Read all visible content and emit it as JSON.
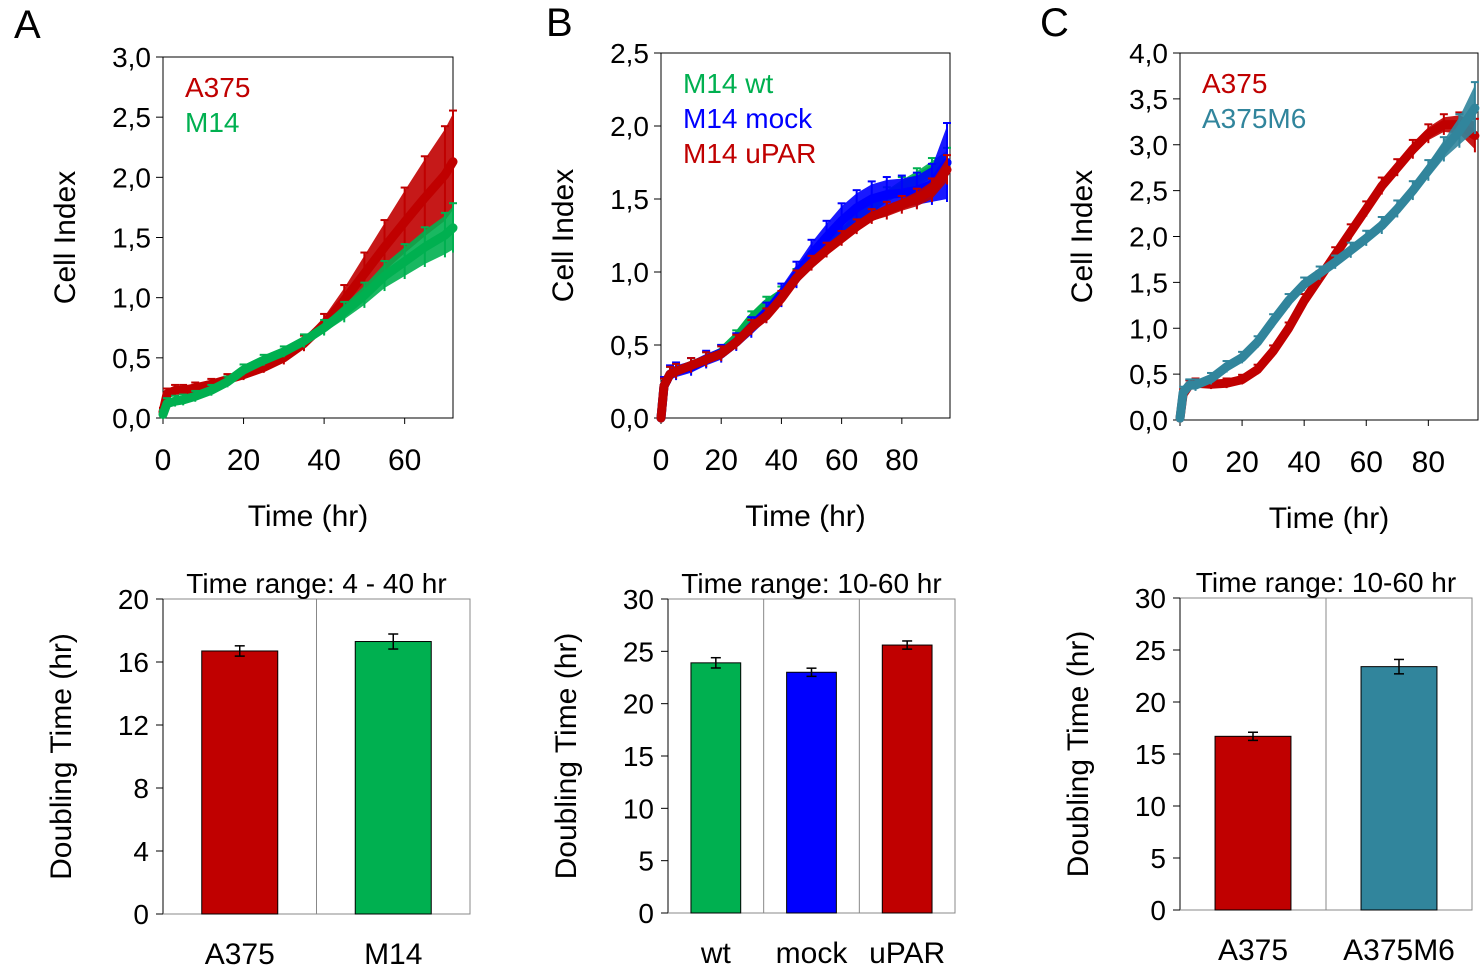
{
  "panel_labels": [
    "A",
    "B",
    "C"
  ],
  "chart_data": [
    {
      "type": "line",
      "panel": "A",
      "xlabel": "Time (hr)",
      "ylabel": "Cell Index",
      "xlim": [
        0,
        72
      ],
      "ylim": [
        0,
        3.0
      ],
      "xticks": [
        "0",
        "20",
        "40",
        "60"
      ],
      "yticks": [
        "0,0",
        "0,5",
        "1,0",
        "1,5",
        "2,0",
        "2,5",
        "3,0"
      ],
      "legend": "top-left",
      "grid": false,
      "series": [
        {
          "name": "A375",
          "color": "#C00000",
          "x": [
            0,
            1,
            3,
            5,
            8,
            12,
            16,
            20,
            25,
            30,
            35,
            40,
            45,
            50,
            55,
            60,
            65,
            70,
            72
          ],
          "y": [
            0.05,
            0.2,
            0.23,
            0.23,
            0.25,
            0.28,
            0.32,
            0.36,
            0.42,
            0.5,
            0.62,
            0.78,
            0.98,
            1.2,
            1.42,
            1.63,
            1.83,
            2.02,
            2.13
          ],
          "err": [
            0.01,
            0.02,
            0.02,
            0.02,
            0.02,
            0.02,
            0.02,
            0.02,
            0.02,
            0.03,
            0.04,
            0.06,
            0.1,
            0.15,
            0.2,
            0.26,
            0.32,
            0.38,
            0.4
          ]
        },
        {
          "name": "M14",
          "color": "#00B050",
          "x": [
            0,
            1,
            3,
            5,
            8,
            12,
            16,
            20,
            25,
            30,
            35,
            40,
            45,
            50,
            55,
            60,
            65,
            70,
            72
          ],
          "y": [
            0.03,
            0.12,
            0.14,
            0.15,
            0.18,
            0.23,
            0.3,
            0.4,
            0.48,
            0.55,
            0.64,
            0.75,
            0.88,
            1.02,
            1.18,
            1.3,
            1.42,
            1.52,
            1.58
          ],
          "err": [
            0.01,
            0.02,
            0.02,
            0.02,
            0.02,
            0.02,
            0.02,
            0.02,
            0.02,
            0.02,
            0.03,
            0.04,
            0.06,
            0.08,
            0.1,
            0.12,
            0.14,
            0.16,
            0.18
          ]
        }
      ]
    },
    {
      "type": "line",
      "panel": "B",
      "xlabel": "Time (hr)",
      "ylabel": "Cell Index",
      "xlim": [
        0,
        96
      ],
      "ylim": [
        0,
        2.5
      ],
      "xticks": [
        "0",
        "20",
        "40",
        "60",
        "80"
      ],
      "yticks": [
        "0,0",
        "0,5",
        "1,0",
        "1,5",
        "2,0",
        "2,5"
      ],
      "legend": "top-left",
      "grid": false,
      "series": [
        {
          "name": "M14 wt",
          "color": "#00B050",
          "x": [
            0,
            1,
            3,
            5,
            10,
            15,
            20,
            25,
            30,
            35,
            40,
            45,
            50,
            55,
            60,
            65,
            70,
            75,
            80,
            85,
            90,
            95
          ],
          "y": [
            0.0,
            0.22,
            0.3,
            0.32,
            0.36,
            0.4,
            0.45,
            0.55,
            0.68,
            0.78,
            0.85,
            0.97,
            1.08,
            1.17,
            1.26,
            1.36,
            1.44,
            1.52,
            1.58,
            1.64,
            1.7,
            1.75
          ],
          "err": [
            0.01,
            0.03,
            0.03,
            0.03,
            0.03,
            0.03,
            0.03,
            0.03,
            0.03,
            0.03,
            0.03,
            0.03,
            0.03,
            0.03,
            0.03,
            0.04,
            0.04,
            0.04,
            0.05,
            0.05,
            0.06,
            0.08
          ]
        },
        {
          "name": "M14 mock",
          "color": "#0000FF",
          "x": [
            0,
            1,
            3,
            5,
            10,
            15,
            20,
            25,
            30,
            35,
            40,
            45,
            50,
            55,
            60,
            65,
            70,
            75,
            80,
            85,
            90,
            95
          ],
          "y": [
            0.0,
            0.22,
            0.3,
            0.32,
            0.35,
            0.4,
            0.44,
            0.52,
            0.62,
            0.72,
            0.84,
            0.98,
            1.12,
            1.24,
            1.35,
            1.44,
            1.5,
            1.53,
            1.54,
            1.56,
            1.6,
            1.75
          ],
          "err": [
            0.01,
            0.04,
            0.04,
            0.04,
            0.04,
            0.04,
            0.04,
            0.04,
            0.05,
            0.05,
            0.06,
            0.07,
            0.08,
            0.09,
            0.1,
            0.1,
            0.1,
            0.1,
            0.1,
            0.1,
            0.12,
            0.25
          ]
        },
        {
          "name": "M14 uPAR",
          "color": "#C00000",
          "x": [
            0,
            1,
            3,
            5,
            10,
            15,
            20,
            25,
            30,
            35,
            40,
            45,
            50,
            55,
            60,
            65,
            70,
            75,
            80,
            85,
            90,
            95
          ],
          "y": [
            0.0,
            0.22,
            0.3,
            0.32,
            0.36,
            0.4,
            0.44,
            0.52,
            0.62,
            0.7,
            0.82,
            0.96,
            1.06,
            1.15,
            1.23,
            1.31,
            1.38,
            1.42,
            1.46,
            1.5,
            1.56,
            1.7
          ],
          "err": [
            0.01,
            0.03,
            0.03,
            0.03,
            0.03,
            0.03,
            0.03,
            0.03,
            0.03,
            0.03,
            0.03,
            0.03,
            0.03,
            0.03,
            0.03,
            0.03,
            0.03,
            0.04,
            0.04,
            0.05,
            0.06,
            0.08
          ]
        }
      ]
    },
    {
      "type": "line",
      "panel": "C",
      "xlabel": "Time (hr)",
      "ylabel": "Cell Index",
      "xlim": [
        0,
        96
      ],
      "ylim": [
        0,
        4.0
      ],
      "xticks": [
        "0",
        "20",
        "40",
        "60",
        "80"
      ],
      "yticks": [
        "0,0",
        "0,5",
        "1,0",
        "1,5",
        "2,0",
        "2,5",
        "3,0",
        "3,5",
        "4,0"
      ],
      "legend": "top-left",
      "grid": false,
      "series": [
        {
          "name": "A375",
          "color": "#C00000",
          "x": [
            0,
            1,
            3,
            5,
            10,
            15,
            20,
            25,
            30,
            35,
            40,
            45,
            50,
            55,
            60,
            65,
            70,
            75,
            80,
            85,
            90,
            95
          ],
          "y": [
            0.02,
            0.28,
            0.38,
            0.4,
            0.39,
            0.4,
            0.44,
            0.55,
            0.75,
            1.0,
            1.3,
            1.55,
            1.8,
            2.05,
            2.3,
            2.55,
            2.75,
            2.95,
            3.12,
            3.22,
            3.22,
            3.1
          ],
          "err": [
            0.01,
            0.02,
            0.02,
            0.02,
            0.02,
            0.02,
            0.02,
            0.02,
            0.03,
            0.03,
            0.04,
            0.04,
            0.05,
            0.05,
            0.05,
            0.06,
            0.06,
            0.07,
            0.07,
            0.08,
            0.1,
            0.15
          ]
        },
        {
          "name": "A375M6",
          "color": "#31859C",
          "x": [
            0,
            1,
            3,
            5,
            10,
            15,
            20,
            25,
            30,
            35,
            40,
            45,
            50,
            55,
            60,
            65,
            70,
            75,
            80,
            85,
            90,
            95
          ],
          "y": [
            0.02,
            0.3,
            0.38,
            0.38,
            0.45,
            0.58,
            0.68,
            0.85,
            1.08,
            1.3,
            1.48,
            1.6,
            1.72,
            1.85,
            1.98,
            2.12,
            2.3,
            2.5,
            2.72,
            2.95,
            3.15,
            3.4
          ],
          "err": [
            0.01,
            0.03,
            0.03,
            0.03,
            0.03,
            0.03,
            0.03,
            0.03,
            0.04,
            0.04,
            0.04,
            0.04,
            0.04,
            0.05,
            0.05,
            0.06,
            0.06,
            0.07,
            0.08,
            0.1,
            0.15,
            0.25
          ]
        }
      ]
    },
    {
      "type": "bar",
      "panel": "A",
      "title": "Time range:  4 - 40 hr",
      "ylabel": "Doubling Time (hr)",
      "ylim": [
        0,
        20
      ],
      "yticks": [
        "0",
        "4",
        "8",
        "12",
        "16",
        "20"
      ],
      "categories": [
        "A375",
        "M14"
      ],
      "values": [
        16.7,
        17.3
      ],
      "errors": [
        0.2,
        0.35
      ],
      "colors": [
        "#C00000",
        "#00B050"
      ]
    },
    {
      "type": "bar",
      "panel": "B",
      "title": "Time range: 10-60 hr",
      "ylabel": "Doubling Time (hr)",
      "ylim": [
        0,
        30
      ],
      "yticks": [
        "0",
        "5",
        "10",
        "15",
        "20",
        "25",
        "30"
      ],
      "categories": [
        "wt",
        "mock",
        "uPAR"
      ],
      "values": [
        23.9,
        23.0,
        25.6
      ],
      "errors": [
        0.3,
        0.2,
        0.2
      ],
      "colors": [
        "#00B050",
        "#0000FF",
        "#C00000"
      ]
    },
    {
      "type": "bar",
      "panel": "C",
      "title": "Time range: 10-60 hr",
      "ylabel": "Doubling Time (hr)",
      "ylim": [
        0,
        30
      ],
      "yticks": [
        "0",
        "5",
        "10",
        "15",
        "20",
        "25",
        "30"
      ],
      "categories": [
        "A375",
        "A375M6"
      ],
      "values": [
        16.7,
        23.4
      ],
      "errors": [
        0.2,
        0.5
      ],
      "colors": [
        "#C00000",
        "#31859C"
      ]
    }
  ]
}
